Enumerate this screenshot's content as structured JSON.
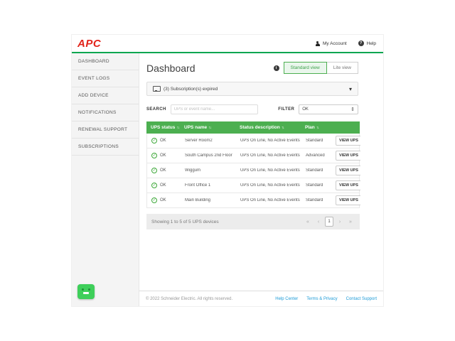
{
  "header": {
    "logo": "APC",
    "account_label": "My Account",
    "help_label": "Help"
  },
  "sidebar": {
    "items": [
      {
        "label": "DASHBOARD"
      },
      {
        "label": "EVENT LOGS"
      },
      {
        "label": "ADD DEVICE"
      },
      {
        "label": "NOTIFICATIONS"
      },
      {
        "label": "RENEWAL SUPPORT"
      },
      {
        "label": "SUBSCRIPTIONS"
      }
    ]
  },
  "page": {
    "title": "Dashboard",
    "standard_view_label": "Standard view",
    "lite_view_label": "Lite view"
  },
  "notice": {
    "text": "(3) Subscription(s) expired"
  },
  "controls": {
    "search_label": "SEARCH",
    "search_placeholder": "UPS or event name...",
    "filter_label": "FILTER",
    "filter_value": "OK"
  },
  "table": {
    "headers": [
      {
        "label": "UPS status"
      },
      {
        "label": "UPS name"
      },
      {
        "label": "Status description"
      },
      {
        "label": "Plan"
      }
    ],
    "rows": [
      {
        "status": "OK",
        "name": "Server Room2",
        "description": "UPS On Line, No Active Events",
        "plan": "Standard",
        "action": "VIEW UPS"
      },
      {
        "status": "OK",
        "name": "South Campus 2nd Floor",
        "description": "UPS On Line, No Active Events",
        "plan": "Advanced",
        "action": "VIEW UPS"
      },
      {
        "status": "OK",
        "name": "Wiggum",
        "description": "UPS On Line, No Active Events",
        "plan": "Standard",
        "action": "VIEW UPS"
      },
      {
        "status": "OK",
        "name": "Front Office 1",
        "description": "UPS On Line, No Active Events",
        "plan": "Standard",
        "action": "VIEW UPS"
      },
      {
        "status": "OK",
        "name": "Main Building",
        "description": "UPS On Line, No Active Events",
        "plan": "Standard",
        "action": "VIEW UPS"
      }
    ]
  },
  "pagination": {
    "summary": "Showing 1 to 5 of 5 UPS devices",
    "current_page": "1"
  },
  "footer": {
    "copyright": "© 2022 Schneider Electric. All rights reserved.",
    "links": [
      {
        "label": "Help Center"
      },
      {
        "label": "Terms & Privacy"
      },
      {
        "label": "Contact Support"
      }
    ]
  },
  "icons": {
    "sort": "↑↓",
    "chevron_down": "▾",
    "check": "✓",
    "updown": "⇕",
    "info": "i",
    "help": "?",
    "first": "«",
    "prev": "‹",
    "next": "›",
    "last": "»"
  },
  "colors": {
    "brand_red": "#e2231a",
    "brand_green": "#4caf50",
    "divider_green": "#00a650",
    "link_blue": "#1d9bd7"
  }
}
